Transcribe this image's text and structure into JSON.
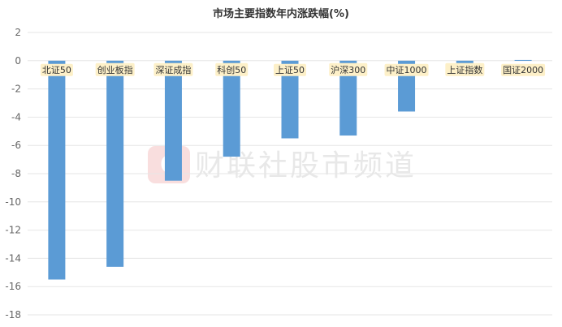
{
  "chart_data": {
    "type": "bar",
    "title": "市场主要指数年内涨跌幅(%)",
    "xlabel": "",
    "ylabel": "",
    "categories": [
      "北证50",
      "创业板指",
      "深证成指",
      "科创50",
      "上证50",
      "沪深300",
      "中证1000",
      "上证指数",
      "国证2000"
    ],
    "values": [
      -15.5,
      -14.6,
      -8.5,
      -6.8,
      -5.5,
      -5.3,
      -3.6,
      -0.4,
      0.05
    ],
    "ylim": [
      -18,
      2
    ],
    "yticks": [
      2,
      0,
      -2,
      -4,
      -6,
      -8,
      -10,
      -12,
      -14,
      -16,
      -18
    ],
    "grid": true,
    "bar_color": "#5b9bd5",
    "label_bg_color": "#fdf0c8"
  },
  "watermark": {
    "text": "财联社股市频道",
    "logo_glyph": "C",
    "logo_color": "#f5c6cb"
  }
}
